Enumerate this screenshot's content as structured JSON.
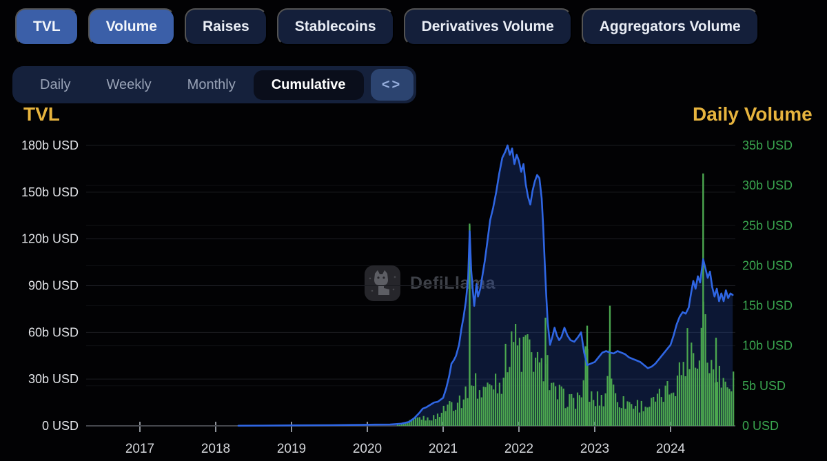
{
  "tabs": {
    "items": [
      {
        "label": "TVL",
        "active": true
      },
      {
        "label": "Volume",
        "active": true
      },
      {
        "label": "Raises",
        "active": false
      },
      {
        "label": "Stablecoins",
        "active": false
      },
      {
        "label": "Derivatives Volume",
        "active": false
      },
      {
        "label": "Aggregators Volume",
        "active": false
      }
    ]
  },
  "period_tabs": {
    "items": [
      {
        "label": "Daily",
        "active": false
      },
      {
        "label": "Weekly",
        "active": false
      },
      {
        "label": "Monthly",
        "active": false
      },
      {
        "label": "Cumulative",
        "active": true
      }
    ],
    "code_label": "<>"
  },
  "watermark": {
    "text": "DefiLlama",
    "icon": "llama-logo"
  },
  "colors": {
    "background": "#020204",
    "tab_active_bg": "#3b5fa8",
    "tab_inactive_bg": "#141f3a",
    "gold_title": "#e7b43e",
    "left_tick_text": "#e3e5e9",
    "right_tick_text": "#3aa64f",
    "x_tick_text": "#d4d6da",
    "tvl_line": "#2f66e3",
    "tvl_area": "rgba(43,88,196,0.25)",
    "volume_bar": "#4ba64f",
    "gridline": "#1b1c21",
    "axis_line": "#45474d"
  },
  "chart_data": {
    "type": "line+bar",
    "title": "",
    "grid": true,
    "x_axis": {
      "tick_years": [
        2017,
        2018,
        2019,
        2020,
        2021,
        2022,
        2023,
        2024
      ],
      "tick_labels": [
        "2017",
        "2018",
        "2019",
        "2020",
        "2021",
        "2022",
        "2023",
        "2024"
      ],
      "range": [
        2016.3,
        2024.85
      ]
    },
    "left_axis": {
      "title": "TVL",
      "unit": "b USD",
      "max": 180,
      "tick_values": [
        180,
        150,
        120,
        90,
        60,
        30,
        0
      ],
      "tick_labels": [
        "180b USD",
        "150b USD",
        "120b USD",
        "90b USD",
        "60b USD",
        "30b USD",
        "0 USD"
      ]
    },
    "right_axis": {
      "title": "Daily Volume",
      "unit": "b USD",
      "max": 35,
      "tick_values": [
        35,
        30,
        25,
        20,
        15,
        10,
        5,
        0
      ],
      "tick_labels": [
        "35b USD",
        "30b USD",
        "25b USD",
        "20b USD",
        "15b USD",
        "10b USD",
        "5b USD",
        "0 USD"
      ]
    },
    "series": [
      {
        "name": "TVL",
        "type": "line",
        "axis": "left",
        "color": "#2f66e3",
        "area_color": "rgba(43,88,196,0.25)",
        "points": [
          [
            2018.3,
            0.1
          ],
          [
            2018.6,
            0.15
          ],
          [
            2019.0,
            0.3
          ],
          [
            2019.5,
            0.45
          ],
          [
            2019.9,
            0.6
          ],
          [
            2020.1,
            0.8
          ],
          [
            2020.3,
            0.9
          ],
          [
            2020.45,
            1.4
          ],
          [
            2020.55,
            2.5
          ],
          [
            2020.62,
            5
          ],
          [
            2020.68,
            8
          ],
          [
            2020.73,
            11
          ],
          [
            2020.78,
            12
          ],
          [
            2020.83,
            13.5
          ],
          [
            2020.88,
            15
          ],
          [
            2020.93,
            15.5
          ],
          [
            2021.0,
            18
          ],
          [
            2021.04,
            24
          ],
          [
            2021.08,
            32
          ],
          [
            2021.11,
            40
          ],
          [
            2021.14,
            42
          ],
          [
            2021.17,
            45
          ],
          [
            2021.21,
            52
          ],
          [
            2021.24,
            62
          ],
          [
            2021.27,
            70
          ],
          [
            2021.3,
            80
          ],
          [
            2021.33,
            95
          ],
          [
            2021.35,
            125
          ],
          [
            2021.37,
            100
          ],
          [
            2021.39,
            88
          ],
          [
            2021.41,
            77
          ],
          [
            2021.44,
            91
          ],
          [
            2021.46,
            83
          ],
          [
            2021.49,
            88
          ],
          [
            2021.52,
            97
          ],
          [
            2021.55,
            106
          ],
          [
            2021.58,
            117
          ],
          [
            2021.62,
            132
          ],
          [
            2021.66,
            140
          ],
          [
            2021.7,
            150
          ],
          [
            2021.74,
            162
          ],
          [
            2021.78,
            172
          ],
          [
            2021.82,
            176
          ],
          [
            2021.85,
            180
          ],
          [
            2021.88,
            174
          ],
          [
            2021.91,
            178
          ],
          [
            2021.94,
            168
          ],
          [
            2021.97,
            174
          ],
          [
            2022.0,
            170
          ],
          [
            2022.03,
            163
          ],
          [
            2022.06,
            168
          ],
          [
            2022.09,
            155
          ],
          [
            2022.12,
            147
          ],
          [
            2022.15,
            142
          ],
          [
            2022.18,
            151
          ],
          [
            2022.21,
            157
          ],
          [
            2022.24,
            161
          ],
          [
            2022.27,
            159
          ],
          [
            2022.3,
            146
          ],
          [
            2022.32,
            128
          ],
          [
            2022.34,
            105
          ],
          [
            2022.36,
            84
          ],
          [
            2022.38,
            66
          ],
          [
            2022.41,
            52
          ],
          [
            2022.44,
            57
          ],
          [
            2022.47,
            63
          ],
          [
            2022.5,
            58
          ],
          [
            2022.53,
            55
          ],
          [
            2022.56,
            57
          ],
          [
            2022.6,
            63
          ],
          [
            2022.64,
            58
          ],
          [
            2022.68,
            55
          ],
          [
            2022.73,
            54
          ],
          [
            2022.78,
            57
          ],
          [
            2022.82,
            60
          ],
          [
            2022.86,
            47
          ],
          [
            2022.9,
            39
          ],
          [
            2022.95,
            40
          ],
          [
            2023.0,
            41
          ],
          [
            2023.05,
            44
          ],
          [
            2023.1,
            47
          ],
          [
            2023.15,
            48
          ],
          [
            2023.2,
            47
          ],
          [
            2023.25,
            46.5
          ],
          [
            2023.3,
            48
          ],
          [
            2023.35,
            47
          ],
          [
            2023.4,
            46
          ],
          [
            2023.45,
            44
          ],
          [
            2023.5,
            43
          ],
          [
            2023.55,
            42
          ],
          [
            2023.6,
            41
          ],
          [
            2023.65,
            39
          ],
          [
            2023.7,
            37
          ],
          [
            2023.75,
            38
          ],
          [
            2023.8,
            40
          ],
          [
            2023.85,
            43
          ],
          [
            2023.9,
            46
          ],
          [
            2023.95,
            49
          ],
          [
            2024.0,
            52
          ],
          [
            2024.04,
            58
          ],
          [
            2024.08,
            65
          ],
          [
            2024.12,
            70
          ],
          [
            2024.16,
            73
          ],
          [
            2024.2,
            72
          ],
          [
            2024.24,
            76
          ],
          [
            2024.27,
            85
          ],
          [
            2024.3,
            93
          ],
          [
            2024.33,
            88
          ],
          [
            2024.36,
            96
          ],
          [
            2024.39,
            92
          ],
          [
            2024.43,
            107
          ],
          [
            2024.46,
            101
          ],
          [
            2024.49,
            95
          ],
          [
            2024.52,
            99
          ],
          [
            2024.55,
            89
          ],
          [
            2024.58,
            83
          ],
          [
            2024.61,
            88
          ],
          [
            2024.64,
            80
          ],
          [
            2024.67,
            85
          ],
          [
            2024.7,
            80
          ],
          [
            2024.73,
            87
          ],
          [
            2024.76,
            82
          ],
          [
            2024.79,
            85
          ],
          [
            2024.82,
            84
          ]
        ]
      },
      {
        "name": "Daily Volume",
        "type": "bar",
        "axis": "right",
        "color": "#4ba64f",
        "envelope": [
          [
            2020.4,
            0.15
          ],
          [
            2020.5,
            0.4
          ],
          [
            2020.6,
            0.9
          ],
          [
            2020.7,
            1.3
          ],
          [
            2020.8,
            1.1
          ],
          [
            2020.9,
            1.4
          ],
          [
            2021.0,
            2.5
          ],
          [
            2021.05,
            3.2
          ],
          [
            2021.1,
            4.0
          ],
          [
            2021.15,
            3.4
          ],
          [
            2021.2,
            4.6
          ],
          [
            2021.25,
            4.2
          ],
          [
            2021.3,
            5.5
          ],
          [
            2021.33,
            7
          ],
          [
            2021.35,
            25
          ],
          [
            2021.37,
            10
          ],
          [
            2021.4,
            7.5
          ],
          [
            2021.45,
            6
          ],
          [
            2021.5,
            5.2
          ],
          [
            2021.55,
            6.5
          ],
          [
            2021.6,
            5.8
          ],
          [
            2021.65,
            7
          ],
          [
            2021.7,
            8
          ],
          [
            2021.75,
            7
          ],
          [
            2021.8,
            9
          ],
          [
            2021.85,
            11
          ],
          [
            2021.9,
            16
          ],
          [
            2021.95,
            13
          ],
          [
            2022.0,
            12.5
          ],
          [
            2022.05,
            11
          ],
          [
            2022.1,
            14
          ],
          [
            2022.15,
            10
          ],
          [
            2022.2,
            12
          ],
          [
            2022.25,
            9
          ],
          [
            2022.3,
            8.5
          ],
          [
            2022.35,
            13.5
          ],
          [
            2022.4,
            7
          ],
          [
            2022.45,
            5.5
          ],
          [
            2022.5,
            4.8
          ],
          [
            2022.55,
            5.2
          ],
          [
            2022.6,
            4.2
          ],
          [
            2022.65,
            4.6
          ],
          [
            2022.7,
            3.8
          ],
          [
            2022.75,
            4.2
          ],
          [
            2022.8,
            5
          ],
          [
            2022.85,
            6
          ],
          [
            2022.9,
            12.5
          ],
          [
            2022.93,
            5
          ],
          [
            2023.0,
            3.8
          ],
          [
            2023.05,
            4.5
          ],
          [
            2023.1,
            4.2
          ],
          [
            2023.15,
            5
          ],
          [
            2023.2,
            15
          ],
          [
            2023.23,
            6
          ],
          [
            2023.3,
            4.5
          ],
          [
            2023.35,
            4
          ],
          [
            2023.4,
            3.6
          ],
          [
            2023.45,
            4
          ],
          [
            2023.5,
            3.2
          ],
          [
            2023.55,
            3.6
          ],
          [
            2023.6,
            3.1
          ],
          [
            2023.65,
            3.5
          ],
          [
            2023.7,
            3.2
          ],
          [
            2023.75,
            3.6
          ],
          [
            2023.8,
            4
          ],
          [
            2023.85,
            4.4
          ],
          [
            2023.9,
            5
          ],
          [
            2023.95,
            5.5
          ],
          [
            2024.0,
            6
          ],
          [
            2024.05,
            7
          ],
          [
            2024.1,
            8
          ],
          [
            2024.15,
            9.5
          ],
          [
            2024.2,
            11
          ],
          [
            2024.25,
            14
          ],
          [
            2024.3,
            12
          ],
          [
            2024.35,
            10
          ],
          [
            2024.4,
            13
          ],
          [
            2024.43,
            31.5
          ],
          [
            2024.46,
            16
          ],
          [
            2024.5,
            10
          ],
          [
            2024.55,
            9
          ],
          [
            2024.6,
            11
          ],
          [
            2024.65,
            8
          ],
          [
            2024.7,
            7
          ],
          [
            2024.75,
            8.5
          ],
          [
            2024.82,
            7.5
          ]
        ],
        "spikes": [
          [
            2021.35,
            25
          ],
          [
            2022.35,
            13.5
          ],
          [
            2022.9,
            12.5
          ],
          [
            2023.2,
            15
          ],
          [
            2024.43,
            31.5
          ],
          [
            2024.6,
            11
          ]
        ]
      }
    ]
  }
}
